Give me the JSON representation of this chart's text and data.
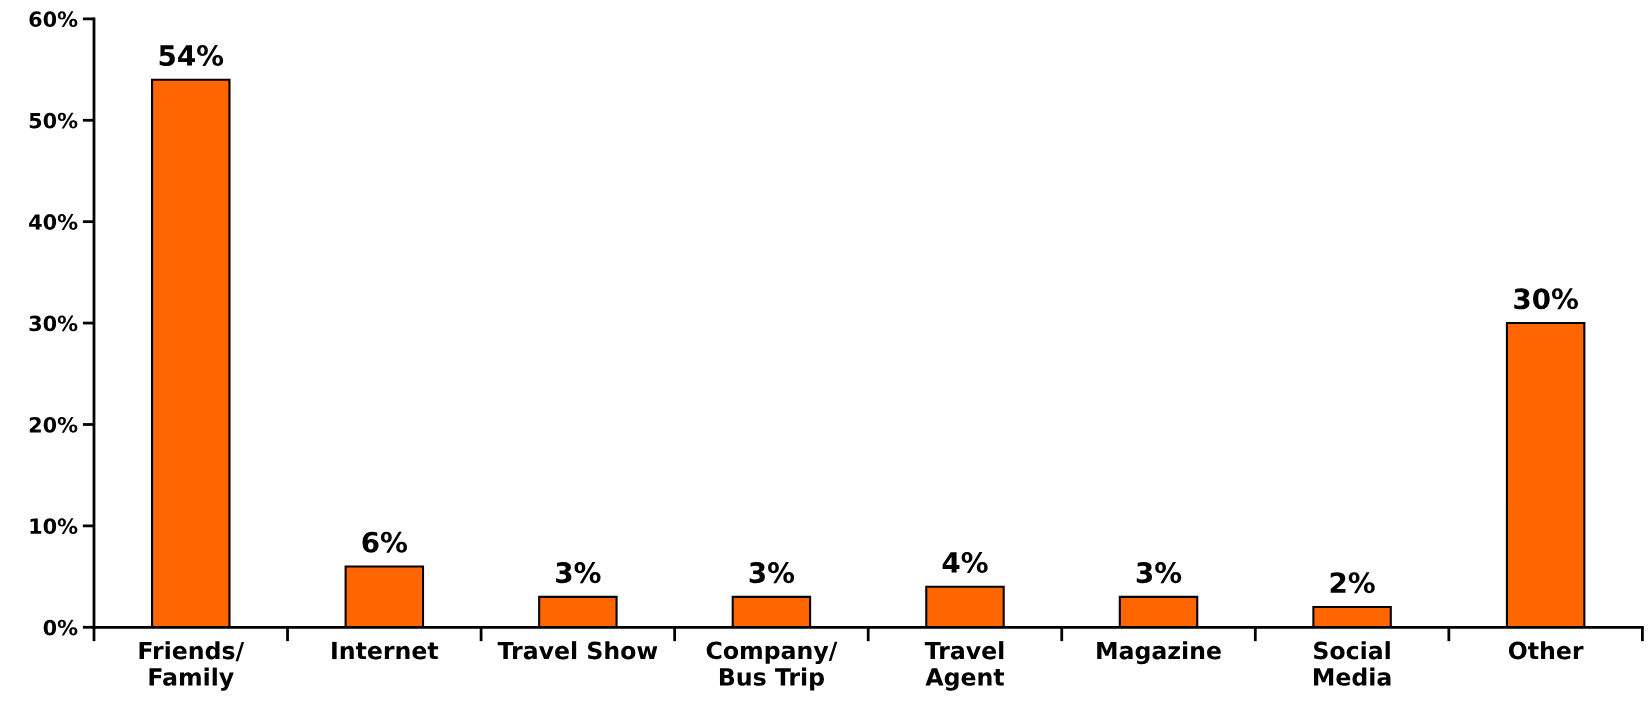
{
  "chart_data": {
    "type": "bar",
    "categories": [
      "Friends/\nFamily",
      "Internet",
      "Travel Show",
      "Company/\nBus Trip",
      "Travel\nAgent",
      "Magazine",
      "Social\nMedia",
      "Other"
    ],
    "values": [
      54,
      6,
      3,
      3,
      4,
      3,
      2,
      30
    ],
    "value_labels": [
      "54%",
      "6%",
      "3%",
      "3%",
      "4%",
      "3%",
      "2%",
      "30%"
    ],
    "color": "#ff6600",
    "ylim": [
      0,
      60
    ],
    "yticks": [
      {
        "value": 0,
        "label": "0%"
      },
      {
        "value": 10,
        "label": "10%"
      },
      {
        "value": 20,
        "label": "20%"
      },
      {
        "value": 30,
        "label": "30%"
      },
      {
        "value": 40,
        "label": "40%"
      },
      {
        "value": 50,
        "label": "50%"
      },
      {
        "value": 60,
        "label": "60%"
      }
    ],
    "grid": false,
    "legend": false
  }
}
